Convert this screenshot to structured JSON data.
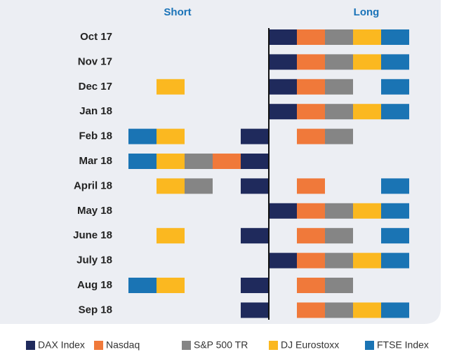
{
  "chart_data": {
    "type": "position",
    "columns": [
      "Short",
      "Long"
    ],
    "categories": [
      "Oct 17",
      "Nov 17",
      "Dec 17",
      "Jan 18",
      "Feb 18",
      "Mar 18",
      "April 18",
      "May 18",
      "June 18",
      "July 18",
      "Aug 18",
      "Sep 18"
    ],
    "series": [
      {
        "name": "DAX Index",
        "color": "#1f2a5c",
        "values": [
          1,
          1,
          1,
          1,
          -1,
          -1,
          -1,
          1,
          -1,
          1,
          -1,
          -1
        ]
      },
      {
        "name": "Nasdaq",
        "color": "#f0793a",
        "values": [
          1,
          1,
          1,
          1,
          1,
          -1,
          1,
          1,
          1,
          1,
          1,
          1
        ]
      },
      {
        "name": "S&P 500 TR",
        "color": "#858585",
        "values": [
          1,
          1,
          1,
          1,
          1,
          -1,
          -1,
          1,
          1,
          1,
          1,
          1
        ]
      },
      {
        "name": "DJ Eurostoxx",
        "color": "#fbb820",
        "values": [
          1,
          1,
          -1,
          1,
          -1,
          -1,
          -1,
          1,
          -1,
          1,
          -1,
          1
        ]
      },
      {
        "name": "FTSE Index",
        "color": "#1a74b4",
        "values": [
          1,
          1,
          1,
          1,
          -1,
          -1,
          1,
          1,
          1,
          1,
          -1,
          1
        ]
      }
    ]
  }
}
